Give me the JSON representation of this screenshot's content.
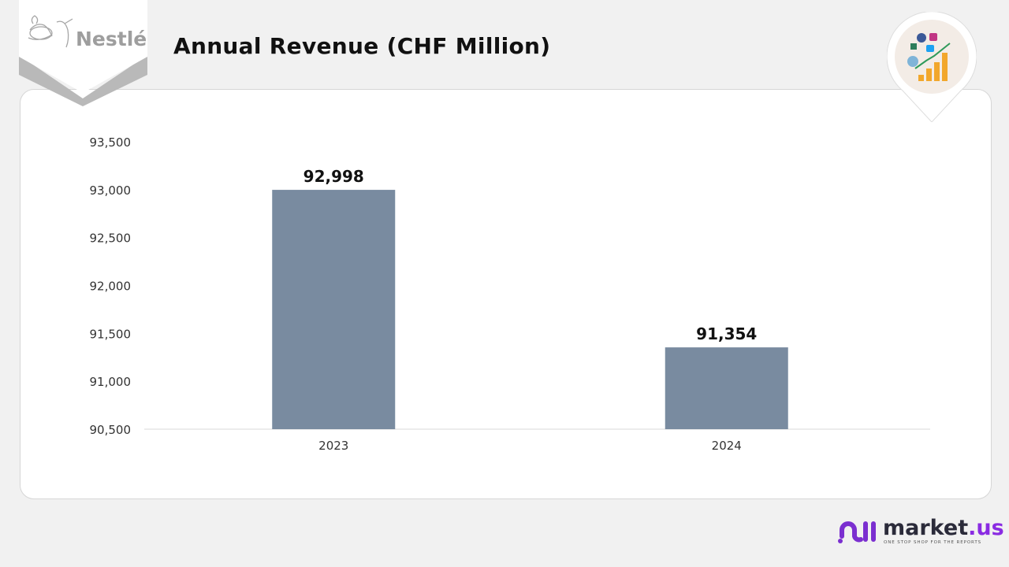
{
  "header": {
    "title": "Annual Revenue (CHF Million)",
    "logo_text": "Nestlé"
  },
  "footer": {
    "brand_name": "market",
    "brand_suffix": ".us",
    "brand_tagline": "ONE STOP SHOP FOR THE REPORTS"
  },
  "icons": {
    "badge": "social-media-growth-icon",
    "brand": "market-us-logo"
  },
  "chart_data": {
    "type": "bar",
    "title": "Annual Revenue (CHF Million)",
    "categories": [
      "2023",
      "2024"
    ],
    "values": [
      92998,
      91354
    ],
    "data_labels": [
      "92,998",
      "91,354"
    ],
    "ylim": [
      90500,
      93500
    ],
    "yticks": [
      90500,
      91000,
      91500,
      92000,
      92500,
      93000,
      93500
    ],
    "ytick_labels": [
      "90,500",
      "91,000",
      "91,500",
      "92,000",
      "92,500",
      "93,000",
      "93,500"
    ],
    "xlabel": "",
    "ylabel": "",
    "grid": false,
    "bar_color": "#798ba0"
  }
}
